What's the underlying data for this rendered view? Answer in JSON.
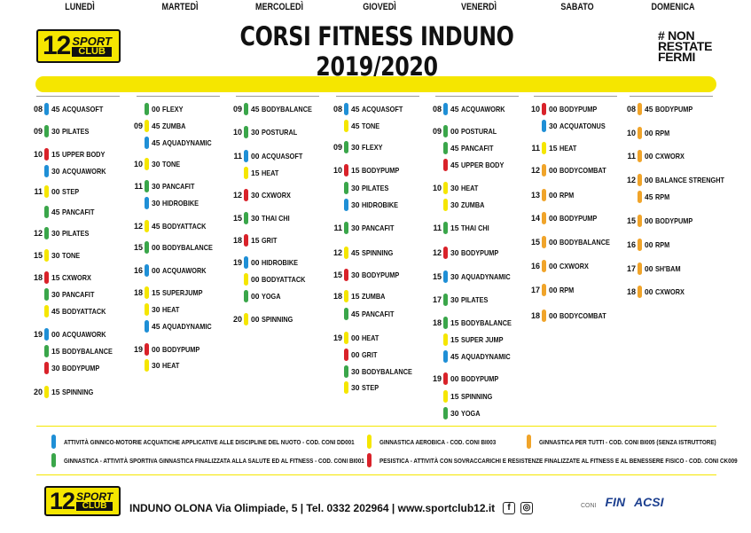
{
  "header": {
    "logo": {
      "number": "12",
      "word1": "SPORT",
      "word2": "CLUB"
    },
    "title": "CORSI FITNESS INDUNO 2019/2020",
    "slogan": [
      "# NON",
      "RESTATE",
      "FERMI"
    ]
  },
  "colors": {
    "yellow": "#f5e600",
    "blue": "#1f8fd6",
    "green": "#3aa64a",
    "red": "#d9222a",
    "orange": "#f0a42a"
  },
  "days": [
    {
      "name": "LUNEDÌ",
      "classes": [
        {
          "h": "08",
          "m": "45",
          "name": "ACQUASOFT",
          "c": "blue"
        },
        {
          "h": "09",
          "m": "30",
          "name": "PILATES",
          "c": "green"
        },
        {
          "h": "10",
          "m": "15",
          "name": "UPPER BODY",
          "c": "red"
        },
        {
          "h": "",
          "m": "30",
          "name": "ACQUAWORK",
          "c": "blue"
        },
        {
          "h": "11",
          "m": "00",
          "name": "STEP",
          "c": "yellow"
        },
        {
          "h": "",
          "m": "45",
          "name": "PANCAFIT",
          "c": "green"
        },
        {
          "h": "12",
          "m": "30",
          "name": "PILATES",
          "c": "green"
        },
        {
          "h": "15",
          "m": "30",
          "name": "TONE",
          "c": "yellow"
        },
        {
          "h": "18",
          "m": "15",
          "name": "CXWORX",
          "c": "red"
        },
        {
          "h": "",
          "m": "30",
          "name": "PANCAFIT",
          "c": "green"
        },
        {
          "h": "",
          "m": "45",
          "name": "BODYATTACK",
          "c": "yellow"
        },
        {
          "h": "19",
          "m": "00",
          "name": "ACQUAWORK",
          "c": "blue"
        },
        {
          "h": "",
          "m": "15",
          "name": "BODYBALANCE",
          "c": "green"
        },
        {
          "h": "",
          "m": "30",
          "name": "BODYPUMP",
          "c": "red"
        },
        {
          "h": "20",
          "m": "15",
          "name": "SPINNING",
          "c": "yellow"
        }
      ]
    },
    {
      "name": "MARTEDÌ",
      "classes": [
        {
          "h": "",
          "m": "00",
          "name": "FLEXY",
          "c": "green"
        },
        {
          "h": "09",
          "m": "45",
          "name": "ZUMBA",
          "c": "yellow"
        },
        {
          "h": "",
          "m": "45",
          "name": "AQUADYNAMIC",
          "c": "blue"
        },
        {
          "h": "10",
          "m": "30",
          "name": "TONE",
          "c": "yellow"
        },
        {
          "h": "11",
          "m": "30",
          "name": "PANCAFIT",
          "c": "green"
        },
        {
          "h": "",
          "m": "30",
          "name": "HIDROBIKE",
          "c": "blue"
        },
        {
          "h": "12",
          "m": "45",
          "name": "BODYATTACK",
          "c": "yellow"
        },
        {
          "h": "15",
          "m": "00",
          "name": "BODYBALANCE",
          "c": "green"
        },
        {
          "h": "16",
          "m": "00",
          "name": "ACQUAWORK",
          "c": "blue"
        },
        {
          "h": "18",
          "m": "15",
          "name": "SUPERJUMP",
          "c": "yellow"
        },
        {
          "h": "",
          "m": "30",
          "name": "HEAT",
          "c": "yellow"
        },
        {
          "h": "",
          "m": "45",
          "name": "AQUADYNAMIC",
          "c": "blue"
        },
        {
          "h": "19",
          "m": "00",
          "name": "BODYPUMP",
          "c": "red"
        },
        {
          "h": "",
          "m": "30",
          "name": "HEAT",
          "c": "yellow"
        }
      ]
    },
    {
      "name": "MERCOLEDÌ",
      "classes": [
        {
          "h": "09",
          "m": "45",
          "name": "BODYBALANCE",
          "c": "green"
        },
        {
          "h": "10",
          "m": "30",
          "name": "POSTURAL",
          "c": "green"
        },
        {
          "h": "11",
          "m": "00",
          "name": "ACQUASOFT",
          "c": "blue"
        },
        {
          "h": "",
          "m": "15",
          "name": "HEAT",
          "c": "yellow"
        },
        {
          "h": "12",
          "m": "30",
          "name": "CXWORX",
          "c": "red"
        },
        {
          "h": "15",
          "m": "30",
          "name": "THAI CHI",
          "c": "green"
        },
        {
          "h": "18",
          "m": "15",
          "name": "GRIT",
          "c": "red"
        },
        {
          "h": "19",
          "m": "00",
          "name": "HIDROBIKE",
          "c": "blue"
        },
        {
          "h": "",
          "m": "00",
          "name": "BODYATTACK",
          "c": "yellow"
        },
        {
          "h": "",
          "m": "00",
          "name": "YOGA",
          "c": "green"
        },
        {
          "h": "20",
          "m": "00",
          "name": "SPINNING",
          "c": "yellow"
        }
      ]
    },
    {
      "name": "GIOVEDÌ",
      "classes": [
        {
          "h": "08",
          "m": "45",
          "name": "ACQUASOFT",
          "c": "blue"
        },
        {
          "h": "",
          "m": "45",
          "name": "TONE",
          "c": "yellow"
        },
        {
          "h": "09",
          "m": "30",
          "name": "FLEXY",
          "c": "green"
        },
        {
          "h": "10",
          "m": "15",
          "name": "BODYPUMP",
          "c": "red"
        },
        {
          "h": "",
          "m": "30",
          "name": "PILATES",
          "c": "green"
        },
        {
          "h": "",
          "m": "30",
          "name": "HIDROBIKE",
          "c": "blue"
        },
        {
          "h": "11",
          "m": "30",
          "name": "PANCAFIT",
          "c": "green"
        },
        {
          "h": "12",
          "m": "45",
          "name": "SPINNING",
          "c": "yellow"
        },
        {
          "h": "15",
          "m": "30",
          "name": "BODYPUMP",
          "c": "red"
        },
        {
          "h": "18",
          "m": "15",
          "name": "ZUMBA",
          "c": "yellow"
        },
        {
          "h": "",
          "m": "45",
          "name": "PANCAFIT",
          "c": "green"
        },
        {
          "h": "19",
          "m": "00",
          "name": "HEAT",
          "c": "yellow"
        },
        {
          "h": "",
          "m": "00",
          "name": "GRIT",
          "c": "red"
        },
        {
          "h": "",
          "m": "30",
          "name": "BODYBALANCE",
          "c": "green"
        },
        {
          "h": "",
          "m": "30",
          "name": "STEP",
          "c": "yellow"
        }
      ]
    },
    {
      "name": "VENERDÌ",
      "classes": [
        {
          "h": "08",
          "m": "45",
          "name": "ACQUAWORK",
          "c": "blue"
        },
        {
          "h": "09",
          "m": "00",
          "name": "POSTURAL",
          "c": "green"
        },
        {
          "h": "",
          "m": "45",
          "name": "PANCAFIT",
          "c": "green"
        },
        {
          "h": "",
          "m": "45",
          "name": "UPPER BODY",
          "c": "red"
        },
        {
          "h": "10",
          "m": "30",
          "name": "HEAT",
          "c": "yellow"
        },
        {
          "h": "",
          "m": "30",
          "name": "ZUMBA",
          "c": "yellow"
        },
        {
          "h": "11",
          "m": "15",
          "name": "THAI CHI",
          "c": "green"
        },
        {
          "h": "12",
          "m": "30",
          "name": "BODYPUMP",
          "c": "red"
        },
        {
          "h": "15",
          "m": "30",
          "name": "AQUADYNAMIC",
          "c": "blue"
        },
        {
          "h": "17",
          "m": "30",
          "name": "PILATES",
          "c": "green"
        },
        {
          "h": "18",
          "m": "15",
          "name": "BODYBALANCE",
          "c": "green"
        },
        {
          "h": "",
          "m": "15",
          "name": "SUPER JUMP",
          "c": "yellow"
        },
        {
          "h": "",
          "m": "45",
          "name": "AQUADYNAMIC",
          "c": "blue"
        },
        {
          "h": "19",
          "m": "00",
          "name": "BODYPUMP",
          "c": "red"
        },
        {
          "h": "",
          "m": "15",
          "name": "SPINNING",
          "c": "yellow"
        },
        {
          "h": "",
          "m": "30",
          "name": "YOGA",
          "c": "green"
        }
      ]
    },
    {
      "name": "SABATO",
      "classes": [
        {
          "h": "10",
          "m": "00",
          "name": "BODYPUMP",
          "c": "red"
        },
        {
          "h": "",
          "m": "30",
          "name": "ACQUATONUS",
          "c": "blue"
        },
        {
          "h": "11",
          "m": "15",
          "name": "HEAT",
          "c": "yellow"
        },
        {
          "h": "12",
          "m": "00",
          "name": "BODYCOMBAT",
          "c": "orange"
        },
        {
          "h": "13",
          "m": "00",
          "name": "RPM",
          "c": "orange"
        },
        {
          "h": "14",
          "m": "00",
          "name": "BODYPUMP",
          "c": "orange"
        },
        {
          "h": "15",
          "m": "00",
          "name": "BODYBALANCE",
          "c": "orange"
        },
        {
          "h": "16",
          "m": "00",
          "name": "CXWORX",
          "c": "orange"
        },
        {
          "h": "17",
          "m": "00",
          "name": "RPM",
          "c": "orange"
        },
        {
          "h": "18",
          "m": "00",
          "name": "BODYCOMBAT",
          "c": "orange"
        }
      ]
    },
    {
      "name": "DOMENICA",
      "classes": [
        {
          "h": "08",
          "m": "45",
          "name": "BODYPUMP",
          "c": "orange"
        },
        {
          "h": "10",
          "m": "00",
          "name": "RPM",
          "c": "orange"
        },
        {
          "h": "11",
          "m": "00",
          "name": "CXWORX",
          "c": "orange"
        },
        {
          "h": "12",
          "m": "00",
          "name": "BALANCE STRENGHT",
          "c": "orange"
        },
        {
          "h": "",
          "m": "45",
          "name": "RPM",
          "c": "orange"
        },
        {
          "h": "15",
          "m": "00",
          "name": "BODYPUMP",
          "c": "orange"
        },
        {
          "h": "16",
          "m": "00",
          "name": "RPM",
          "c": "orange"
        },
        {
          "h": "17",
          "m": "00",
          "name": "SH'BAM",
          "c": "orange"
        },
        {
          "h": "18",
          "m": "00",
          "name": "CXWORX",
          "c": "orange"
        }
      ]
    }
  ],
  "legend": [
    {
      "c": "blue",
      "text": "ATTIVITÀ GINNICO-MOTORIE ACQUATICHE APPLICATIVE ALLE DISCIPLINE DEL NUOTO - COD. CONI DD001"
    },
    {
      "c": "green",
      "text": "GINNASTICA - ATTIVITÀ SPORTIVA GINNASTICA FINALIZZATA ALLA SALUTE ED AL FITNESS - COD. CONI BI001"
    },
    {
      "c": "yellow",
      "text": "GINNASTICA AEROBICA - COD. CONI BI003"
    },
    {
      "c": "orange",
      "text": "GINNASTICA PER TUTTI - COD. CONI BI005 (SENZA ISTRUTTORE)"
    },
    {
      "c": "red",
      "text": "PESISTICA - ATTIVITÀ CON SOVRACCARICHI E RESISTENZE FINALIZZATE AL FITNESS E AL BENESSERE FISICO - COD. CONI CK009"
    }
  ],
  "footer": {
    "logo": {
      "number": "12",
      "word1": "SPORT",
      "word2": "CLUB"
    },
    "text": "INDUNO OLONA Via Olimpiade, 5 | Tel. 0332 202964 | www.sportclub12.it",
    "social": [
      "facebook-icon",
      "instagram-icon"
    ],
    "sponsors": [
      "CONI",
      "FIN",
      "ACSI"
    ]
  }
}
